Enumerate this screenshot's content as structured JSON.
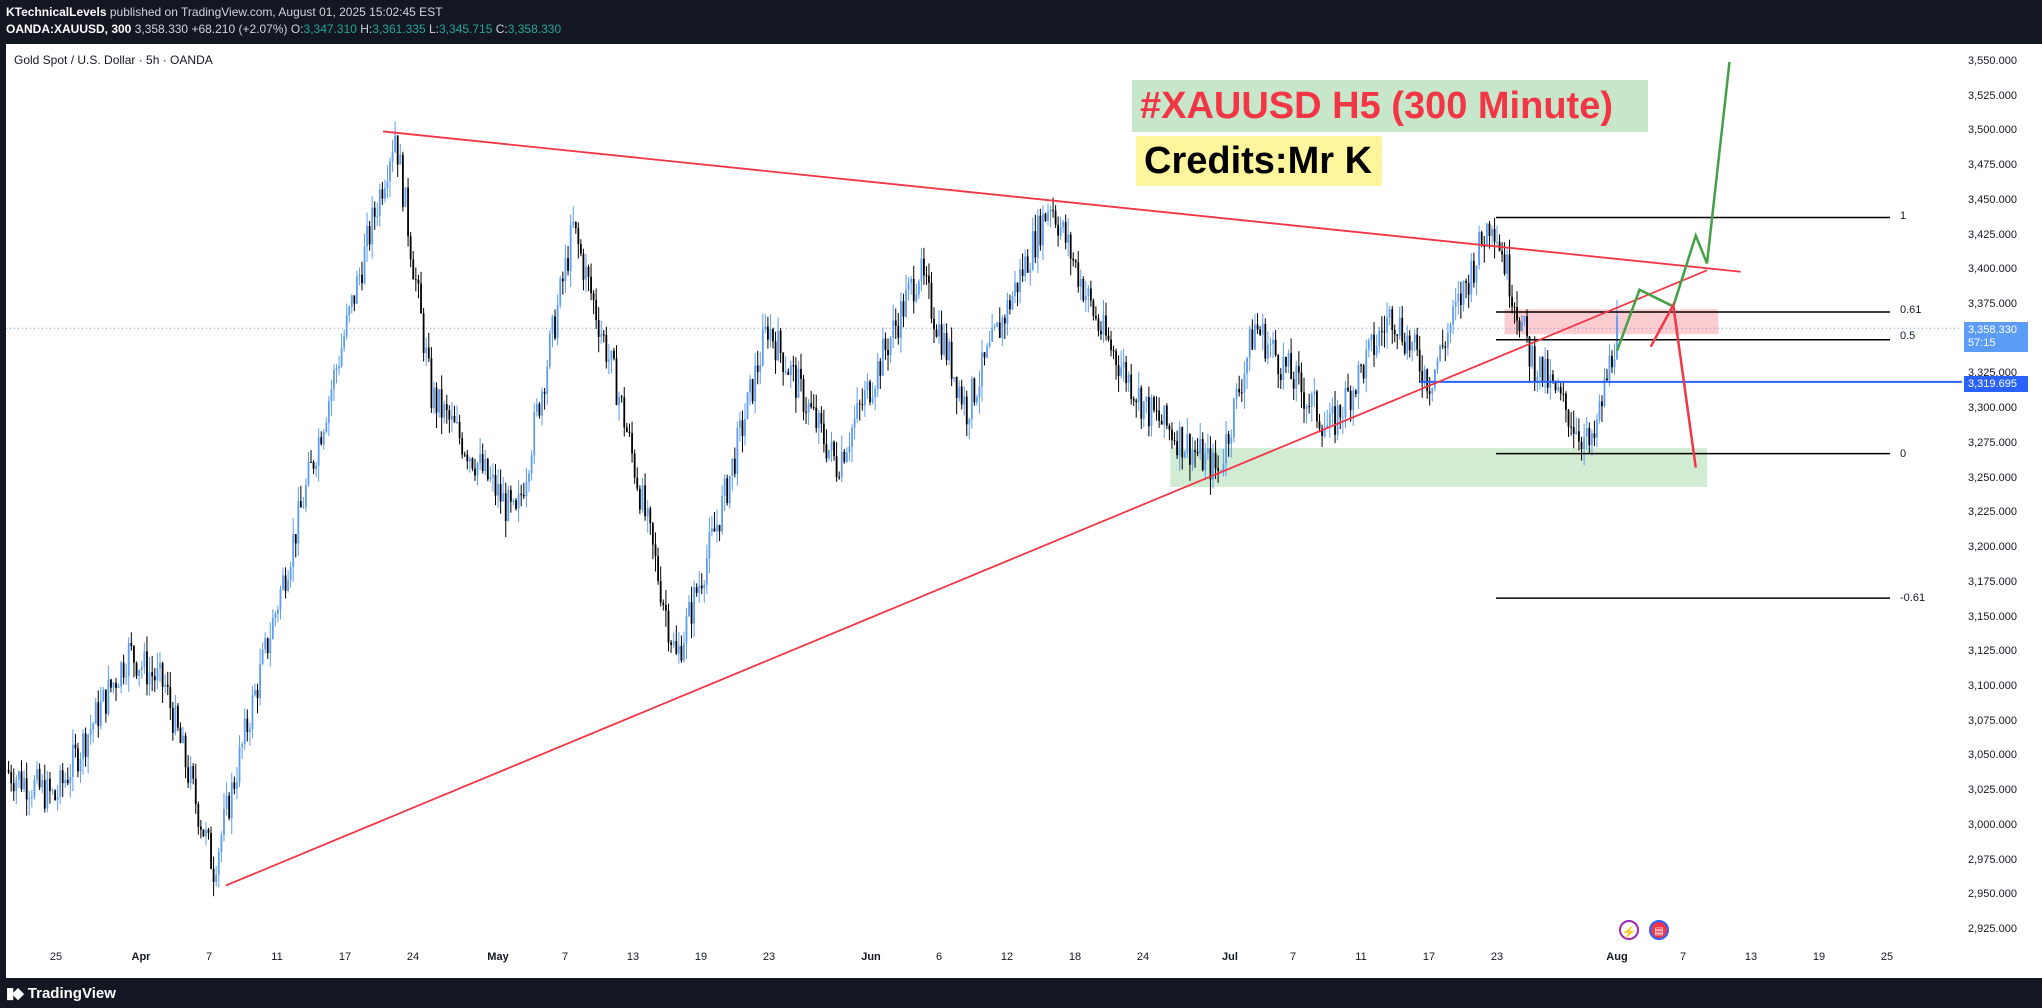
{
  "header": {
    "author": "KTechnicalLevels",
    "published": "published on TradingView.com, August 01, 2025 15:02:45 EST",
    "symbol": "OANDA:XAUUSD, 300",
    "last": "3,358.330",
    "change": "+68.210 (+2.07%)",
    "o_label": "O:",
    "o_value": "3,347.310",
    "h_label": "H:",
    "h_value": "3,361.335",
    "l_label": "L:",
    "l_value": "3,345.715",
    "c_label": "C:",
    "c_value": "3,358.330"
  },
  "instrument": "Gold Spot / U.S. Dollar · 5h · OANDA",
  "annotations": {
    "title": "#XAUUSD  H5 (300 Minute)",
    "credits": "Credits:Mr K"
  },
  "price_tag": {
    "price": "3,358.330",
    "countdown": "57:15"
  },
  "blue_tag": "3,319.695",
  "fib_labels": {
    "l1": "1",
    "l061": "0.61",
    "l05": "0.5",
    "l0": "0",
    "lneg": "-0.61"
  },
  "footer": {
    "brand": "TradingView"
  },
  "colors": {
    "up": "#5b9cf6",
    "down": "#000000",
    "trend": "#f23645",
    "green_path": "#43a047",
    "blue_line": "#2962ff"
  },
  "icons": [
    "lightning-icon",
    "us-flag-icon",
    "tradingview-logo-icon"
  ],
  "chart_data": {
    "type": "candlestick",
    "title": "Gold Spot / U.S. Dollar · 5h · OANDA",
    "ylim": [
      2912,
      3562
    ],
    "y_ticks": [
      "3,550.000",
      "3,525.000",
      "3,500.000",
      "3,475.000",
      "3,450.000",
      "3,425.000",
      "3,400.000",
      "3,375.000",
      "3,350.000",
      "3,325.000",
      "3,300.000",
      "3,275.000",
      "3,250.000",
      "3,225.000",
      "3,200.000",
      "3,175.000",
      "3,150.000",
      "3,125.000",
      "3,100.000",
      "3,075.000",
      "3,050.000",
      "3,025.000",
      "3,000.000",
      "2,975.000",
      "2,950.000",
      "2,925.000"
    ],
    "x_ticks": [
      "25",
      "Apr",
      "7",
      "11",
      "17",
      "24",
      "May",
      "7",
      "13",
      "19",
      "23",
      "Jun",
      "6",
      "12",
      "18",
      "24",
      "Jul",
      "7",
      "11",
      "17",
      "23",
      "Aug",
      "7",
      "13",
      "19",
      "25"
    ],
    "key_price_path": [
      {
        "date": "Mar 21",
        "price": 3040
      },
      {
        "date": "Mar 25",
        "price": 3020
      },
      {
        "date": "Mar 31",
        "price": 3125
      },
      {
        "date": "Apr 3",
        "price": 3100
      },
      {
        "date": "Apr 7",
        "price": 2970
      },
      {
        "date": "Apr 10",
        "price": 3080
      },
      {
        "date": "Apr 14",
        "price": 3220
      },
      {
        "date": "Apr 22",
        "price": 3500
      },
      {
        "date": "Apr 25",
        "price": 3310
      },
      {
        "date": "May 1",
        "price": 3220
      },
      {
        "date": "May 6",
        "price": 3430
      },
      {
        "date": "May 10",
        "price": 3310
      },
      {
        "date": "May 15",
        "price": 3120
      },
      {
        "date": "May 19",
        "price": 3230
      },
      {
        "date": "May 23",
        "price": 3360
      },
      {
        "date": "May 29",
        "price": 3260
      },
      {
        "date": "Jun 5",
        "price": 3400
      },
      {
        "date": "Jun 9",
        "price": 3300
      },
      {
        "date": "Jun 16",
        "price": 3450
      },
      {
        "date": "Jun 20",
        "price": 3360
      },
      {
        "date": "Jun 24",
        "price": 3300
      },
      {
        "date": "Jun 30",
        "price": 3255
      },
      {
        "date": "Jul 3",
        "price": 3360
      },
      {
        "date": "Jul 9",
        "price": 3285
      },
      {
        "date": "Jul 14",
        "price": 3370
      },
      {
        "date": "Jul 17",
        "price": 3320
      },
      {
        "date": "Jul 22",
        "price": 3440
      },
      {
        "date": "Jul 25",
        "price": 3340
      },
      {
        "date": "Jul 30",
        "price": 3270
      },
      {
        "date": "Aug 1",
        "price": 3358
      }
    ],
    "trendlines": [
      {
        "name": "upper",
        "from": {
          "date": "Apr 21",
          "price": 3500
        },
        "to": {
          "date": "Aug 12",
          "price": 3399
        }
      },
      {
        "name": "lower",
        "from": {
          "date": "Apr 8",
          "price": 2957
        },
        "to": {
          "date": "Aug 9",
          "price": 3400
        }
      }
    ],
    "fibonacci": [
      {
        "level": "1",
        "price": 3438
      },
      {
        "level": "0.61",
        "price": 3370
      },
      {
        "level": "0.5",
        "price": 3350
      },
      {
        "level": "0",
        "price": 3268
      },
      {
        "level": "-0.61",
        "price": 3164
      }
    ],
    "horizontal_line": 3319.695,
    "zones": [
      {
        "color": "green",
        "from_date": "Jun 26",
        "to_date": "Aug 9",
        "low": 3244,
        "high": 3272
      },
      {
        "color": "red",
        "from_date": "Jul 23",
        "to_date": "Aug 10",
        "low": 3354,
        "high": 3372
      }
    ],
    "projections": {
      "bullish": [
        {
          "date": "Aug 1",
          "price": 3342
        },
        {
          "date": "Aug 3",
          "price": 3386
        },
        {
          "date": "Aug 6",
          "price": 3374
        },
        {
          "date": "Aug 8",
          "price": 3425
        },
        {
          "date": "Aug 9",
          "price": 3405
        },
        {
          "date": "Aug 11",
          "price": 3550
        }
      ],
      "bearish": [
        {
          "date": "Aug 4",
          "price": 3345
        },
        {
          "date": "Aug 6",
          "price": 3375
        },
        {
          "date": "Aug 8",
          "price": 3258
        }
      ]
    },
    "last_price": 3358.33,
    "grid": false
  }
}
